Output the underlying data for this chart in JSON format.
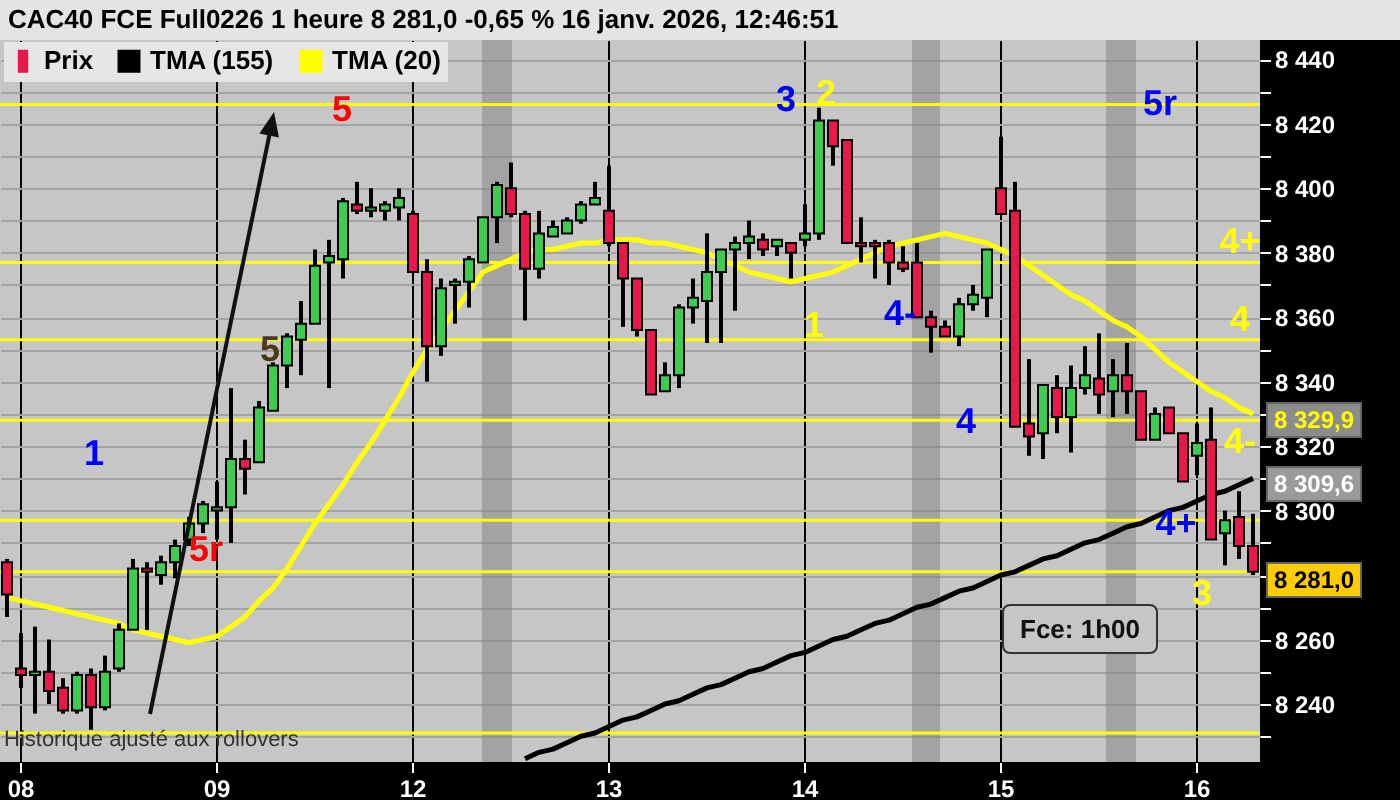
{
  "chart_data": {
    "type": "candlestick",
    "title": "CAC40 FCE Full0226 1 heure 8 281,0 -0,65 % 16 janv. 2026, 12:46:51",
    "categories": [
      null,
      "08",
      null,
      null,
      null,
      null,
      null,
      null,
      null,
      null,
      null,
      null,
      null,
      null,
      null,
      "09",
      null,
      null,
      null,
      null,
      null,
      null,
      null,
      null,
      null,
      null,
      null,
      null,
      null,
      "12",
      null,
      null,
      null,
      null,
      null,
      null,
      null,
      null,
      null,
      null,
      null,
      null,
      null,
      "13",
      null,
      null,
      null,
      null,
      null,
      null,
      null,
      null,
      null,
      null,
      null,
      null,
      null,
      "14",
      null,
      null,
      null,
      null,
      null,
      null,
      null,
      null,
      null,
      null,
      null,
      null,
      null,
      "15",
      null,
      null,
      null,
      null,
      null,
      null,
      null,
      null,
      null,
      null,
      null,
      null,
      null,
      "16",
      null,
      null,
      null,
      null
    ],
    "series": [
      {
        "name": "Prix",
        "type": "candlestick",
        "ohlc": [
          [
            8284,
            8285,
            8267,
            8274
          ],
          [
            8251,
            8262,
            8245,
            8249
          ],
          [
            8249,
            8264,
            8237,
            8250
          ],
          [
            8250,
            8260,
            8240,
            8244
          ],
          [
            8245,
            8248,
            8237,
            8238
          ],
          [
            8238,
            8250,
            8237,
            8249
          ],
          [
            8249,
            8251,
            8232,
            8239
          ],
          [
            8239,
            8255,
            8238,
            8250
          ],
          [
            8251,
            8265,
            8250,
            8263
          ],
          [
            8263,
            8285,
            8263,
            8282
          ],
          [
            8282,
            8284,
            8263,
            8281
          ],
          [
            8280,
            8286,
            8277,
            8284
          ],
          [
            8284,
            8291,
            8279,
            8289
          ],
          [
            8291,
            8298,
            8289,
            8296
          ],
          [
            8296,
            8303,
            8293,
            8302
          ],
          [
            8300,
            8309,
            8291,
            8301
          ],
          [
            8301,
            8338,
            8290,
            8316
          ],
          [
            8316,
            8322,
            8305,
            8313
          ],
          [
            8315,
            8334,
            8315,
            8332
          ],
          [
            8331,
            8346,
            8331,
            8345
          ],
          [
            8345,
            8355,
            8338,
            8354
          ],
          [
            8353,
            8365,
            8342,
            8358
          ],
          [
            8358,
            8381,
            8358,
            8376
          ],
          [
            8377,
            8384,
            8338,
            8379
          ],
          [
            8378,
            8397,
            8372,
            8396
          ],
          [
            8395,
            8402,
            8392,
            8393
          ],
          [
            8393,
            8400,
            8391,
            8394
          ],
          [
            8393,
            8396,
            8390,
            8395
          ],
          [
            8394,
            8400,
            8390,
            8397
          ],
          [
            8392,
            8393,
            8374,
            8374
          ],
          [
            8374,
            8378,
            8340,
            8351
          ],
          [
            8351,
            8372,
            8348,
            8369
          ],
          [
            8370,
            8372,
            8358,
            8371
          ],
          [
            8371,
            8379,
            8363,
            8378
          ],
          [
            8377,
            8391,
            8377,
            8391
          ],
          [
            8391,
            8402,
            8383,
            8401
          ],
          [
            8400,
            8408,
            8391,
            8392
          ],
          [
            8392,
            8393,
            8359,
            8375
          ],
          [
            8375,
            8393,
            8372,
            8386
          ],
          [
            8385,
            8390,
            8385,
            8388
          ],
          [
            8386,
            8391,
            8386,
            8390
          ],
          [
            8390,
            8396,
            8389,
            8395
          ],
          [
            8395,
            8402,
            8395,
            8397
          ],
          [
            8393,
            8407,
            8382,
            8383
          ],
          [
            8383,
            8383,
            8357,
            8372
          ],
          [
            8372,
            8372,
            8354,
            8356
          ],
          [
            8356,
            8356,
            8336,
            8336
          ],
          [
            8337,
            8346,
            8337,
            8342
          ],
          [
            8342,
            8364,
            8338,
            8363
          ],
          [
            8363,
            8372,
            8358,
            8366
          ],
          [
            8365,
            8386,
            8352,
            8374
          ],
          [
            8374,
            8381,
            8352,
            8381
          ],
          [
            8381,
            8385,
            8362,
            8383
          ],
          [
            8383,
            8390,
            8378,
            8385
          ],
          [
            8384,
            8386,
            8379,
            8381
          ],
          [
            8382,
            8384,
            8379,
            8384
          ],
          [
            8383,
            8383,
            8372,
            8380
          ],
          [
            8384,
            8395,
            8382,
            8386
          ],
          [
            8386,
            8425,
            8384,
            8421
          ],
          [
            8421,
            8421,
            8407,
            8413
          ],
          [
            8415,
            8415,
            8383,
            8383
          ],
          [
            8383,
            8391,
            8377,
            8382
          ],
          [
            8383,
            8384,
            8372,
            8382
          ],
          [
            8383,
            8384,
            8370,
            8377
          ],
          [
            8377,
            8382,
            8374,
            8375
          ],
          [
            8377,
            8383,
            8360,
            8360
          ],
          [
            8360,
            8362,
            8349,
            8357
          ],
          [
            8357,
            8359,
            8354,
            8354
          ],
          [
            8354,
            8366,
            8351,
            8364
          ],
          [
            8364,
            8370,
            8362,
            8367
          ],
          [
            8366,
            8381,
            8360,
            8381
          ],
          [
            8400,
            8416,
            8392,
            8392
          ],
          [
            8393,
            8402,
            8326,
            8326
          ],
          [
            8327,
            8347,
            8317,
            8323
          ],
          [
            8324,
            8339,
            8316,
            8339
          ],
          [
            8338,
            8342,
            8324,
            8329
          ],
          [
            8329,
            8345,
            8318,
            8338
          ],
          [
            8338,
            8351,
            8336,
            8342
          ],
          [
            8341,
            8355,
            8330,
            8336
          ],
          [
            8337,
            8347,
            8329,
            8342
          ],
          [
            8342,
            8352,
            8330,
            8337
          ],
          [
            8337,
            8337,
            8322,
            8322
          ],
          [
            8322,
            8332,
            8322,
            8330
          ],
          [
            8332,
            8332,
            8324,
            8324
          ],
          [
            8324,
            8324,
            8309,
            8309
          ],
          [
            8317,
            8327,
            8311,
            8321
          ],
          [
            8322,
            8332,
            8291,
            8291
          ],
          [
            8293,
            8300,
            8283,
            8297
          ],
          [
            8298,
            8306,
            8285,
            8289
          ],
          [
            8289,
            8299,
            8280,
            8281
          ]
        ],
        "colors": [
          "#e8194a",
          "#e8194a",
          "#3ccc50",
          "#e8194a",
          "#e8194a",
          "#3ccc50",
          "#e8194a",
          "#3ccc50",
          "#3ccc50",
          "#3ccc50",
          "#e8194a",
          "#3ccc50",
          "#3ccc50",
          "#3ccc50",
          "#3ccc50",
          "#3ccc50",
          "#3ccc50",
          "#e8194a",
          "#3ccc50",
          "#3ccc50",
          "#3ccc50",
          "#3ccc50",
          "#3ccc50",
          "#3ccc50",
          "#3ccc50",
          "#e8194a",
          "#3ccc50",
          "#3ccc50",
          "#3ccc50",
          "#e8194a",
          "#e8194a",
          "#3ccc50",
          "#3ccc50",
          "#3ccc50",
          "#3ccc50",
          "#3ccc50",
          "#e8194a",
          "#e8194a",
          "#3ccc50",
          "#3ccc50",
          "#3ccc50",
          "#3ccc50",
          "#3ccc50",
          "#e8194a",
          "#e8194a",
          "#e8194a",
          "#e8194a",
          "#3ccc50",
          "#3ccc50",
          "#3ccc50",
          "#3ccc50",
          "#3ccc50",
          "#3ccc50",
          "#3ccc50",
          "#e8194a",
          "#3ccc50",
          "#e8194a",
          "#3ccc50",
          "#3ccc50",
          "#e8194a",
          "#e8194a",
          "#e8194a",
          "#e8194a",
          "#e8194a",
          "#e8194a",
          "#e8194a",
          "#e8194a",
          "#e8194a",
          "#3ccc50",
          "#3ccc50",
          "#3ccc50",
          "#e8194a",
          "#e8194a",
          "#e8194a",
          "#3ccc50",
          "#e8194a",
          "#3ccc50",
          "#3ccc50",
          "#e8194a",
          "#3ccc50",
          "#e8194a",
          "#e8194a",
          "#3ccc50",
          "#e8194a",
          "#e8194a",
          "#3ccc50",
          "#e8194a",
          "#3ccc50",
          "#e8194a",
          "#e8194a"
        ]
      },
      {
        "name": "TMA (155)",
        "type": "line",
        "color": "#000000",
        "values": [
          null,
          null,
          null,
          null,
          null,
          null,
          null,
          null,
          null,
          null,
          null,
          null,
          null,
          null,
          null,
          null,
          null,
          null,
          null,
          null,
          null,
          null,
          null,
          null,
          null,
          null,
          null,
          null,
          null,
          null,
          null,
          null,
          null,
          null,
          null,
          null,
          null,
          8223,
          8225,
          8226,
          8228,
          8230,
          8231,
          8233,
          8235,
          8236,
          8238,
          8240,
          8241,
          8243,
          8245,
          8246,
          8248,
          8250,
          8251,
          8253,
          8255,
          8256,
          8258,
          8260,
          8261,
          8263,
          8265,
          8266,
          8268,
          8270,
          8271,
          8273,
          8275,
          8276,
          8278,
          8280,
          8281,
          8283,
          8285,
          8286,
          8288,
          8290,
          8291,
          8293,
          8295,
          8296,
          8298,
          8300,
          8301,
          8303,
          8305,
          8306,
          8308,
          8310
        ]
      },
      {
        "name": "TMA (20)",
        "type": "line",
        "color": "#ffff00",
        "values": [
          8273,
          8272,
          8271,
          8270,
          8269,
          8268,
          8267,
          8266,
          8265,
          8263,
          8262,
          8261,
          8260,
          8259,
          8260,
          8261,
          8264,
          8267,
          8272,
          8276,
          8282,
          8289,
          8296,
          8302,
          8308,
          8315,
          8321,
          8328,
          8335,
          8343,
          8350,
          8356,
          8362,
          8368,
          8374,
          8376,
          8378,
          8380,
          8381,
          8381,
          8382,
          8383,
          8383,
          8384,
          8384,
          8384,
          8383,
          8383,
          8382,
          8381,
          8380,
          8378,
          8376,
          8374,
          8373,
          8372,
          8371,
          8372,
          8373,
          8374,
          8376,
          8378,
          8380,
          8382,
          8383,
          8384,
          8385,
          8386,
          8385,
          8384,
          8383,
          8381,
          8379,
          8376,
          8373,
          8370,
          8367,
          8365,
          8362,
          8359,
          8357,
          8354,
          8350,
          8346,
          8343,
          8340,
          8337,
          8335,
          8332,
          8330
        ]
      }
    ],
    "ylim": [
      8222,
      8446
    ],
    "yticks": [
      {
        "value": 8230,
        "label": null
      },
      {
        "value": 8240,
        "label": "8 240"
      },
      {
        "value": 8250,
        "label": null
      },
      {
        "value": 8260,
        "label": "8 260"
      },
      {
        "value": 8270,
        "label": null
      },
      {
        "value": 8280,
        "label": null
      },
      {
        "value": 8290,
        "label": null
      },
      {
        "value": 8300,
        "label": "8 300"
      },
      {
        "value": 8310,
        "label": null
      },
      {
        "value": 8320,
        "label": "8 320"
      },
      {
        "value": 8330,
        "label": null
      },
      {
        "value": 8340,
        "label": "8 340"
      },
      {
        "value": 8350,
        "label": null
      },
      {
        "value": 8360,
        "label": "8 360"
      },
      {
        "value": 8370,
        "label": null
      },
      {
        "value": 8380,
        "label": "8 380"
      },
      {
        "value": 8390,
        "label": null
      },
      {
        "value": 8400,
        "label": "8 400"
      },
      {
        "value": 8410,
        "label": null
      },
      {
        "value": 8420,
        "label": "8 420"
      },
      {
        "value": 8430,
        "label": null
      },
      {
        "value": 8440,
        "label": "8 440"
      }
    ],
    "grid": true,
    "legend": "top left",
    "ref_lines": [
      {
        "axis": "y",
        "value": 8426,
        "color": "#ffff00"
      },
      {
        "axis": "y",
        "value": 8377,
        "color": "#ffff00"
      },
      {
        "axis": "y",
        "value": 8353,
        "color": "#ffff00"
      },
      {
        "axis": "y",
        "value": 8328,
        "color": "#ffff00"
      },
      {
        "axis": "y",
        "value": 8297,
        "color": "#ffff00"
      },
      {
        "axis": "y",
        "value": 8281,
        "color": "#ffff00"
      },
      {
        "axis": "y",
        "value": 8231,
        "color": "#ffff00"
      }
    ],
    "annotations": [
      "5",
      "1",
      "5r",
      "5",
      "3",
      "2",
      "1",
      "4-",
      "4",
      "5r",
      "4+",
      "4+",
      "4",
      "4-",
      "3",
      "8 329,9",
      "8 309,6",
      "8 281,0",
      "Historique ajusté aux rollovers",
      "Fce: 1h00"
    ]
  }
}
